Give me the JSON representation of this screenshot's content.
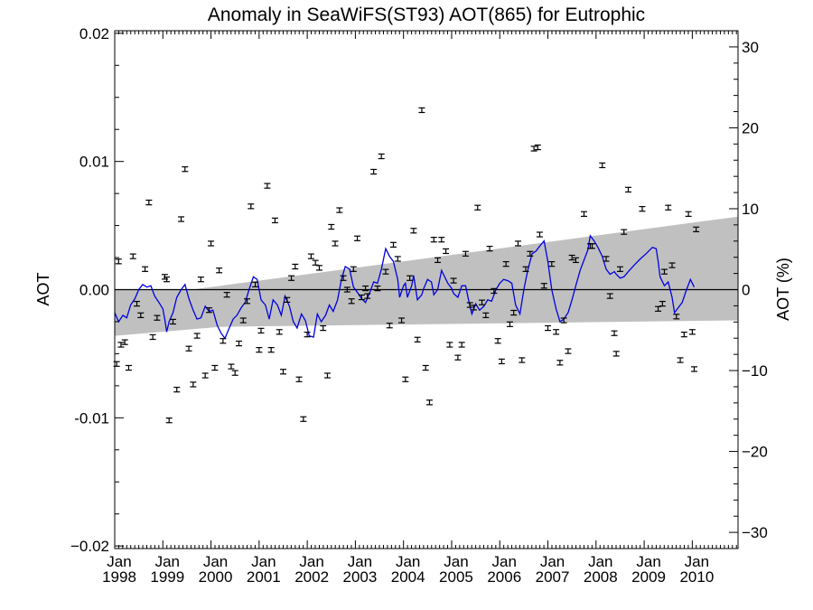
{
  "chart_data": {
    "type": "scatter",
    "title": "Anomaly in SeaWiFS(ST93) AOT(865) for Eutrophic",
    "ylabel_left": "AOT",
    "ylabel_right": "AOT (%)",
    "xlim": [
      1998.0,
      2010.95
    ],
    "ylim_left": [
      -0.0202,
      0.0202
    ],
    "ylim_right": [
      -32,
      32
    ],
    "x_ticks": [
      {
        "x": 1998.0,
        "label_top": "Jan",
        "label_bottom": "1998"
      },
      {
        "x": 1999.0,
        "label_top": "Jan",
        "label_bottom": "1999"
      },
      {
        "x": 2000.0,
        "label_top": "Jan",
        "label_bottom": "2000"
      },
      {
        "x": 2001.0,
        "label_top": "Jan",
        "label_bottom": "2001"
      },
      {
        "x": 2002.0,
        "label_top": "Jan",
        "label_bottom": "2002"
      },
      {
        "x": 2003.0,
        "label_top": "Jan",
        "label_bottom": "2003"
      },
      {
        "x": 2004.0,
        "label_top": "Jan",
        "label_bottom": "2004"
      },
      {
        "x": 2005.0,
        "label_top": "Jan",
        "label_bottom": "2005"
      },
      {
        "x": 2006.0,
        "label_top": "Jan",
        "label_bottom": "2006"
      },
      {
        "x": 2007.0,
        "label_top": "Jan",
        "label_bottom": "2007"
      },
      {
        "x": 2008.0,
        "label_top": "Jan",
        "label_bottom": "2008"
      },
      {
        "x": 2009.0,
        "label_top": "Jan",
        "label_bottom": "2009"
      },
      {
        "x": 2010.0,
        "label_top": "Jan",
        "label_bottom": "2010"
      }
    ],
    "y_ticks_left": [
      {
        "v": 0.02,
        "label": "0.02"
      },
      {
        "v": 0.01,
        "label": "0.01"
      },
      {
        "v": 0.0,
        "label": "0.00"
      },
      {
        "v": -0.01,
        "label": "-0.01"
      },
      {
        "v": -0.02,
        "label": "−0.02"
      }
    ],
    "y_ticks_right": [
      {
        "v": 30,
        "label": "30"
      },
      {
        "v": 20,
        "label": "20"
      },
      {
        "v": 10,
        "label": "10"
      },
      {
        "v": 0,
        "label": "0"
      },
      {
        "v": -10,
        "label": "−10"
      },
      {
        "v": -20,
        "label": "−20"
      },
      {
        "v": -30,
        "label": "−30"
      }
    ],
    "zero_line": 0.0,
    "band": {
      "color": "#c0c0c0",
      "upper": [
        [
          1998.0,
          0.0
        ],
        [
          1999.6,
          0.0
        ],
        [
          2010.95,
          0.0057
        ]
      ],
      "lower": [
        [
          1998.0,
          -0.0036
        ],
        [
          2000.2,
          -0.0029
        ],
        [
          2010.95,
          -0.0024
        ]
      ]
    },
    "error_bar_halfwidth": 0.00018,
    "points": [
      [
        1998.04,
        -0.0058
      ],
      [
        1998.08,
        0.0022
      ],
      [
        1998.13,
        -0.0043
      ],
      [
        1998.21,
        -0.0041
      ],
      [
        1998.29,
        -0.0061
      ],
      [
        1998.38,
        0.0026
      ],
      [
        1998.46,
        -0.0011
      ],
      [
        1998.54,
        -0.002
      ],
      [
        1998.63,
        0.0016
      ],
      [
        1998.71,
        0.0068
      ],
      [
        1998.79,
        -0.0037
      ],
      [
        1998.88,
        -0.0022
      ],
      [
        1999.04,
        0.001
      ],
      [
        1999.08,
        0.0008
      ],
      [
        1999.13,
        -0.0102
      ],
      [
        1999.21,
        -0.0025
      ],
      [
        1999.29,
        -0.0078
      ],
      [
        1999.38,
        0.0055
      ],
      [
        1999.46,
        0.0094
      ],
      [
        1999.54,
        -0.0046
      ],
      [
        1999.63,
        -0.0074
      ],
      [
        1999.71,
        -0.0036
      ],
      [
        1999.79,
        0.0008
      ],
      [
        1999.88,
        -0.0067
      ],
      [
        1999.96,
        -0.0016
      ],
      [
        2000.0,
        0.0036
      ],
      [
        2000.08,
        -0.0061
      ],
      [
        2000.17,
        0.0015
      ],
      [
        2000.25,
        -0.004
      ],
      [
        2000.33,
        -0.0004
      ],
      [
        2000.42,
        -0.006
      ],
      [
        2000.5,
        -0.0065
      ],
      [
        2000.58,
        -0.0042
      ],
      [
        2000.67,
        -0.0024
      ],
      [
        2000.75,
        -0.0009
      ],
      [
        2000.83,
        0.0065
      ],
      [
        2000.92,
        0.0004
      ],
      [
        2001.0,
        -0.0047
      ],
      [
        2001.04,
        -0.0032
      ],
      [
        2001.17,
        0.0081
      ],
      [
        2001.25,
        -0.0047
      ],
      [
        2001.33,
        0.0054
      ],
      [
        2001.42,
        -0.0033
      ],
      [
        2001.5,
        -0.0064
      ],
      [
        2001.58,
        -0.0008
      ],
      [
        2001.67,
        0.0009
      ],
      [
        2001.75,
        0.0018
      ],
      [
        2001.83,
        -0.007
      ],
      [
        2001.92,
        -0.0101
      ],
      [
        2002.0,
        -0.0035
      ],
      [
        2002.08,
        0.0026
      ],
      [
        2002.17,
        0.0021
      ],
      [
        2002.25,
        0.0017
      ],
      [
        2002.33,
        -0.003
      ],
      [
        2002.42,
        -0.0067
      ],
      [
        2002.5,
        0.0049
      ],
      [
        2002.58,
        0.0036
      ],
      [
        2002.67,
        0.0062
      ],
      [
        2002.75,
        0.0009
      ],
      [
        2002.83,
        0.0
      ],
      [
        2002.92,
        -0.0009
      ],
      [
        2002.96,
        0.0016
      ],
      [
        2003.04,
        0.004
      ],
      [
        2003.13,
        -0.0006
      ],
      [
        2003.21,
        0.0001
      ],
      [
        2003.25,
        -0.0005
      ],
      [
        2003.38,
        0.0092
      ],
      [
        2003.46,
        0.0001
      ],
      [
        2003.54,
        0.0104
      ],
      [
        2003.63,
        0.0014
      ],
      [
        2003.71,
        -0.0028
      ],
      [
        2003.79,
        0.0035
      ],
      [
        2003.88,
        0.0024
      ],
      [
        2003.96,
        -0.0024
      ],
      [
        2004.04,
        -0.007
      ],
      [
        2004.13,
        0.0009
      ],
      [
        2004.21,
        0.0046
      ],
      [
        2004.29,
        -0.0039
      ],
      [
        2004.38,
        0.014
      ],
      [
        2004.46,
        -0.0061
      ],
      [
        2004.54,
        -0.0088
      ],
      [
        2004.63,
        0.0039
      ],
      [
        2004.71,
        0.0023
      ],
      [
        2004.79,
        0.0039
      ],
      [
        2004.88,
        0.003
      ],
      [
        2004.96,
        -0.0043
      ],
      [
        2005.04,
        0.0007
      ],
      [
        2005.13,
        -0.0053
      ],
      [
        2005.21,
        -0.0043
      ],
      [
        2005.29,
        0.0028
      ],
      [
        2005.38,
        -0.0012
      ],
      [
        2005.46,
        -0.0014
      ],
      [
        2005.54,
        0.0064
      ],
      [
        2005.63,
        -0.001
      ],
      [
        2005.71,
        -0.002
      ],
      [
        2005.79,
        0.0032
      ],
      [
        2005.88,
        -0.0001
      ],
      [
        2005.96,
        -0.004
      ],
      [
        2006.04,
        -0.0056
      ],
      [
        2006.13,
        0.002
      ],
      [
        2006.21,
        -0.0027
      ],
      [
        2006.29,
        -0.0018
      ],
      [
        2006.38,
        0.0036
      ],
      [
        2006.46,
        -0.0055
      ],
      [
        2006.54,
        0.0016
      ],
      [
        2006.63,
        0.0028
      ],
      [
        2006.71,
        0.011
      ],
      [
        2006.79,
        0.0111
      ],
      [
        2006.83,
        0.0043
      ],
      [
        2006.92,
        0.0003
      ],
      [
        2007.0,
        -0.003
      ],
      [
        2007.08,
        0.002
      ],
      [
        2007.17,
        -0.0033
      ],
      [
        2007.25,
        -0.0057
      ],
      [
        2007.33,
        -0.0024
      ],
      [
        2007.42,
        -0.0048
      ],
      [
        2007.5,
        0.0025
      ],
      [
        2007.58,
        0.0023
      ],
      [
        2007.75,
        0.0059
      ],
      [
        2007.88,
        0.0034
      ],
      [
        2007.92,
        0.0034
      ],
      [
        2008.13,
        0.0097
      ],
      [
        2008.21,
        0.0024
      ],
      [
        2008.29,
        -0.0005
      ],
      [
        2008.38,
        -0.0034
      ],
      [
        2008.42,
        -0.005
      ],
      [
        2008.5,
        0.0016
      ],
      [
        2008.58,
        0.0045
      ],
      [
        2008.67,
        0.0078
      ],
      [
        2008.96,
        0.0063
      ],
      [
        2009.29,
        -0.0015
      ],
      [
        2009.38,
        -0.0011
      ],
      [
        2009.42,
        0.0014
      ],
      [
        2009.5,
        0.0064
      ],
      [
        2009.58,
        0.0019
      ],
      [
        2009.67,
        -0.0021
      ],
      [
        2009.75,
        -0.0055
      ],
      [
        2009.83,
        -0.0035
      ],
      [
        2009.92,
        0.0059
      ],
      [
        2010.0,
        -0.0033
      ],
      [
        2010.04,
        -0.0062
      ],
      [
        2010.08,
        0.0047
      ]
    ],
    "line": {
      "color": "#0000e0",
      "points": [
        [
          1998.0,
          -0.0018
        ],
        [
          1998.08,
          -0.0025
        ],
        [
          1998.17,
          -0.002
        ],
        [
          1998.25,
          -0.0022
        ],
        [
          1998.33,
          -0.0012
        ],
        [
          1998.42,
          -0.0007
        ],
        [
          1998.5,
          0.0
        ],
        [
          1998.58,
          0.0004
        ],
        [
          1998.67,
          0.0002
        ],
        [
          1998.75,
          0.0003
        ],
        [
          1998.83,
          -0.0005
        ],
        [
          1998.92,
          -0.001
        ],
        [
          1999.0,
          -0.0015
        ],
        [
          1999.04,
          -0.0023
        ],
        [
          1999.08,
          -0.0033
        ],
        [
          1999.13,
          -0.0025
        ],
        [
          1999.21,
          -0.0018
        ],
        [
          1999.29,
          -0.0006
        ],
        [
          1999.38,
          0.0
        ],
        [
          1999.46,
          0.0004
        ],
        [
          1999.54,
          -0.0007
        ],
        [
          1999.63,
          -0.0016
        ],
        [
          1999.71,
          -0.0023
        ],
        [
          1999.79,
          -0.0022
        ],
        [
          1999.88,
          -0.0013
        ],
        [
          1999.96,
          -0.0017
        ],
        [
          2000.04,
          -0.0016
        ],
        [
          2000.13,
          -0.0028
        ],
        [
          2000.21,
          -0.0034
        ],
        [
          2000.29,
          -0.0038
        ],
        [
          2000.38,
          -0.003
        ],
        [
          2000.46,
          -0.0023
        ],
        [
          2000.54,
          -0.002
        ],
        [
          2000.63,
          -0.0014
        ],
        [
          2000.71,
          -0.001
        ],
        [
          2000.79,
          0.0
        ],
        [
          2000.88,
          0.001
        ],
        [
          2000.96,
          0.0008
        ],
        [
          2001.04,
          -0.0008
        ],
        [
          2001.13,
          -0.0012
        ],
        [
          2001.21,
          -0.0023
        ],
        [
          2001.29,
          -0.0008
        ],
        [
          2001.38,
          -0.0012
        ],
        [
          2001.46,
          -0.002
        ],
        [
          2001.54,
          -0.0005
        ],
        [
          2001.63,
          -0.0013
        ],
        [
          2001.71,
          -0.0025
        ],
        [
          2001.79,
          -0.003
        ],
        [
          2001.88,
          -0.0019
        ],
        [
          2001.96,
          -0.0024
        ],
        [
          2002.04,
          -0.0036
        ],
        [
          2002.13,
          -0.0037
        ],
        [
          2002.21,
          -0.0019
        ],
        [
          2002.29,
          -0.0025
        ],
        [
          2002.38,
          -0.002
        ],
        [
          2002.46,
          -0.0012
        ],
        [
          2002.54,
          -0.0017
        ],
        [
          2002.63,
          -0.0008
        ],
        [
          2002.71,
          0.0008
        ],
        [
          2002.79,
          0.0018
        ],
        [
          2002.88,
          0.0016
        ],
        [
          2002.96,
          0.0002
        ],
        [
          2003.04,
          -0.0002
        ],
        [
          2003.13,
          -0.0007
        ],
        [
          2003.21,
          -0.001
        ],
        [
          2003.29,
          -0.0003
        ],
        [
          2003.38,
          0.0006
        ],
        [
          2003.46,
          0.0005
        ],
        [
          2003.54,
          0.0016
        ],
        [
          2003.63,
          0.0032
        ],
        [
          2003.71,
          0.0026
        ],
        [
          2003.79,
          0.0022
        ],
        [
          2003.88,
          0.0008
        ],
        [
          2003.92,
          -0.0006
        ],
        [
          2004.0,
          0.0003
        ],
        [
          2004.04,
          0.0005
        ],
        [
          2004.08,
          -0.0006
        ],
        [
          2004.17,
          0.0003
        ],
        [
          2004.21,
          0.0011
        ],
        [
          2004.29,
          -0.0008
        ],
        [
          2004.38,
          -0.0004
        ],
        [
          2004.42,
          0.0001
        ],
        [
          2004.5,
          0.0008
        ],
        [
          2004.58,
          0.0006
        ],
        [
          2004.63,
          -0.0004
        ],
        [
          2004.71,
          0.0
        ],
        [
          2004.79,
          0.0015
        ],
        [
          2004.83,
          0.0012
        ],
        [
          2004.92,
          0.0005
        ],
        [
          2005.0,
          0.0001
        ],
        [
          2005.04,
          -0.0003
        ],
        [
          2005.13,
          -0.0006
        ],
        [
          2005.21,
          0.0003
        ],
        [
          2005.29,
          0.0003
        ],
        [
          2005.38,
          -0.0013
        ],
        [
          2005.42,
          -0.0019
        ],
        [
          2005.5,
          -0.0011
        ],
        [
          2005.58,
          -0.0016
        ],
        [
          2005.67,
          -0.0013
        ],
        [
          2005.75,
          -0.0008
        ],
        [
          2005.83,
          -0.0009
        ],
        [
          2005.92,
          0.0
        ],
        [
          2006.0,
          0.0005
        ],
        [
          2006.08,
          0.0008
        ],
        [
          2006.17,
          0.0007
        ],
        [
          2006.25,
          0.0005
        ],
        [
          2006.33,
          -0.0012
        ],
        [
          2006.42,
          -0.0019
        ],
        [
          2006.5,
          0.0
        ],
        [
          2006.58,
          0.0015
        ],
        [
          2006.67,
          0.0028
        ],
        [
          2006.75,
          0.003
        ],
        [
          2006.83,
          0.0034
        ],
        [
          2006.92,
          0.0038
        ],
        [
          2007.0,
          0.0022
        ],
        [
          2007.08,
          0.0
        ],
        [
          2007.17,
          -0.0015
        ],
        [
          2007.25,
          -0.0025
        ],
        [
          2007.33,
          -0.0023
        ],
        [
          2007.42,
          -0.0018
        ],
        [
          2007.5,
          -0.0008
        ],
        [
          2007.58,
          0.0003
        ],
        [
          2007.67,
          0.0015
        ],
        [
          2007.75,
          0.0023
        ],
        [
          2007.83,
          0.0031
        ],
        [
          2007.88,
          0.0042
        ],
        [
          2007.96,
          0.0038
        ],
        [
          2008.04,
          0.0033
        ],
        [
          2008.13,
          0.0026
        ],
        [
          2008.21,
          0.0016
        ],
        [
          2008.29,
          0.0012
        ],
        [
          2008.38,
          0.0014
        ],
        [
          2008.42,
          0.0012
        ],
        [
          2008.5,
          0.0009
        ],
        [
          2008.58,
          0.001
        ],
        [
          2008.67,
          0.0014
        ],
        [
          2008.79,
          0.0019
        ],
        [
          2008.92,
          0.0024
        ],
        [
          2009.04,
          0.0028
        ],
        [
          2009.17,
          0.0033
        ],
        [
          2009.25,
          0.0032
        ],
        [
          2009.29,
          0.0022
        ],
        [
          2009.33,
          0.001
        ],
        [
          2009.42,
          0.0003
        ],
        [
          2009.5,
          0.0006
        ],
        [
          2009.58,
          -0.0006
        ],
        [
          2009.63,
          -0.0018
        ],
        [
          2009.71,
          -0.0014
        ],
        [
          2009.79,
          -0.001
        ],
        [
          2009.88,
          0.0
        ],
        [
          2009.96,
          0.0008
        ],
        [
          2010.04,
          0.0002
        ]
      ]
    }
  }
}
